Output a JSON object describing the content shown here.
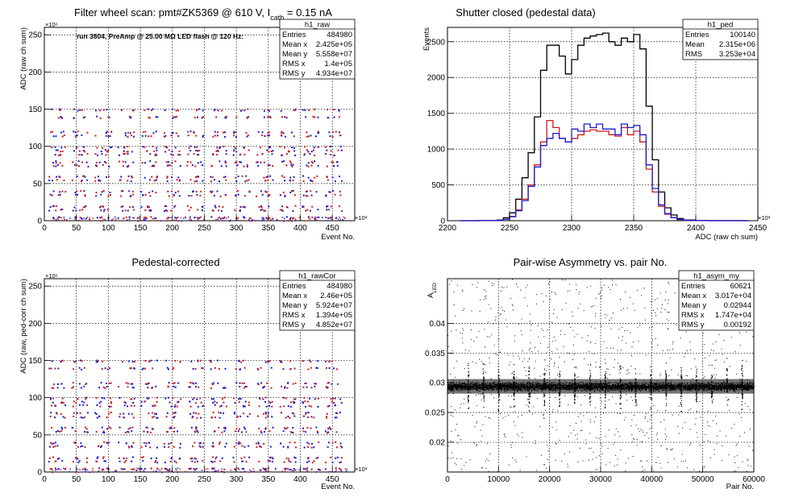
{
  "chart_data": [
    {
      "type": "scatter",
      "title": "Filter wheel scan: pmt#ZK5369 @   610 V, I",
      "title_sub": "cath",
      "title_tail": " = 0.15 nA",
      "annotation": "run 3804, PreAmp @ 25.00 MΩ LED flash @  120 Hz:",
      "xlabel": "Event No.",
      "ylabel": "ADC (raw ch sum)",
      "x_exponent": "×10³",
      "y_exponent": "×10⁶",
      "xlim": [
        0,
        485
      ],
      "ylim": [
        0,
        260
      ],
      "xticks": [
        "0",
        "50",
        "100",
        "150",
        "200",
        "250",
        "300",
        "350",
        "400",
        "450"
      ],
      "yticks": [
        "0",
        "50",
        "100",
        "150",
        "200",
        "250"
      ],
      "levels": [
        150,
        140,
        120,
        115,
        100,
        95,
        90,
        80,
        75,
        60,
        55,
        40,
        35,
        20,
        15,
        5
      ],
      "stats": {
        "name": "h1_raw",
        "rows": [
          [
            "Entries",
            "484980"
          ],
          [
            "Mean x",
            "2.425e+05"
          ],
          [
            "Mean y",
            "5.558e+07"
          ],
          [
            "RMS x",
            "1.4e+05"
          ],
          [
            "RMS y",
            "4.934e+07"
          ]
        ]
      }
    },
    {
      "type": "line",
      "title": "Shutter closed (pedestal data)",
      "xlabel": "ADC (raw ch sum)",
      "ylabel": "Events",
      "x_exponent": "×10³",
      "xlim": [
        2200,
        2450
      ],
      "ylim": [
        0,
        2700
      ],
      "xticks": [
        "2200",
        "2250",
        "2300",
        "2350",
        "2400",
        "2450"
      ],
      "yticks": [
        "0",
        "500",
        "1000",
        "1500",
        "2000",
        "2500"
      ],
      "x": [
        2210,
        2225,
        2240,
        2245,
        2250,
        2255,
        2260,
        2265,
        2270,
        2275,
        2280,
        2285,
        2290,
        2295,
        2300,
        2305,
        2310,
        2315,
        2320,
        2325,
        2330,
        2335,
        2340,
        2345,
        2350,
        2355,
        2360,
        2365,
        2370,
        2375,
        2380,
        2385,
        2390,
        2400,
        2410,
        2440
      ],
      "series": [
        {
          "color": "#000000",
          "values": [
            0,
            2,
            10,
            40,
            110,
            300,
            600,
            950,
            1450,
            2100,
            2450,
            2450,
            2300,
            2050,
            2250,
            2450,
            2550,
            2580,
            2600,
            2620,
            2500,
            2450,
            2550,
            2500,
            2600,
            2400,
            1600,
            850,
            400,
            180,
            80,
            30,
            10,
            3,
            1,
            0
          ]
        },
        {
          "color": "#d11a1a",
          "values": [
            0,
            1,
            5,
            20,
            60,
            150,
            300,
            500,
            780,
            1100,
            1400,
            1300,
            1150,
            1100,
            1150,
            1200,
            1250,
            1270,
            1250,
            1250,
            1200,
            1180,
            1300,
            1200,
            1250,
            1100,
            720,
            400,
            200,
            90,
            40,
            15,
            5,
            1,
            0,
            0
          ]
        },
        {
          "color": "#1a1ad1",
          "values": [
            0,
            1,
            5,
            20,
            55,
            140,
            280,
            480,
            750,
            1050,
            1150,
            1220,
            1150,
            1100,
            1280,
            1250,
            1350,
            1300,
            1350,
            1280,
            1280,
            1200,
            1350,
            1300,
            1330,
            1200,
            780,
            450,
            220,
            100,
            45,
            18,
            6,
            2,
            0,
            0
          ]
        }
      ],
      "stats": {
        "name": "h1_ped",
        "rows": [
          [
            "Entries",
            "100140"
          ],
          [
            "Mean",
            "2.315e+06"
          ],
          [
            "RMS",
            "3.253e+04"
          ]
        ]
      }
    },
    {
      "type": "scatter",
      "title": "Pedestal-corrected",
      "xlabel": "Event No.",
      "ylabel": "ADC (raw, ped-corr ch sum)",
      "x_exponent": "×10³",
      "y_exponent": "×10⁶",
      "xlim": [
        0,
        485
      ],
      "ylim": [
        0,
        260
      ],
      "xticks": [
        "0",
        "50",
        "100",
        "150",
        "200",
        "250",
        "300",
        "350",
        "400",
        "450"
      ],
      "yticks": [
        "0",
        "50",
        "100",
        "150",
        "200",
        "250"
      ],
      "levels": [
        150,
        140,
        120,
        115,
        100,
        95,
        90,
        80,
        75,
        60,
        55,
        40,
        35,
        20,
        15,
        5
      ],
      "stats": {
        "name": "h1_rawCor",
        "rows": [
          [
            "Entries",
            "484980"
          ],
          [
            "Mean x",
            "2.46e+05"
          ],
          [
            "Mean y",
            "5.924e+07"
          ],
          [
            "RMS x",
            "1.394e+05"
          ],
          [
            "RMS y",
            "4.852e+07"
          ]
        ]
      }
    },
    {
      "type": "scatter",
      "title": "Pair-wise Asymmetry vs. pair No.",
      "xlabel": "Pair No.",
      "ylabel": "A",
      "ylabel_sub": "LED",
      "xlim": [
        0,
        60000
      ],
      "ylim": [
        0.015,
        0.0475
      ],
      "xticks": [
        "0",
        "10000",
        "20000",
        "30000",
        "40000",
        "50000",
        "60000"
      ],
      "yticks": [
        "0.02",
        "0.025",
        "0.03",
        "0.035",
        "0.04"
      ],
      "band_center": 0.0294,
      "stats": {
        "name": "h1_asym_my",
        "rows": [
          [
            "Entries",
            "60621"
          ],
          [
            "Mean x",
            "3.017e+04"
          ],
          [
            "Mean y",
            "0.02944"
          ],
          [
            "RMS x",
            "1.747e+04"
          ],
          [
            "RMS y",
            "0.00192"
          ]
        ]
      }
    }
  ]
}
